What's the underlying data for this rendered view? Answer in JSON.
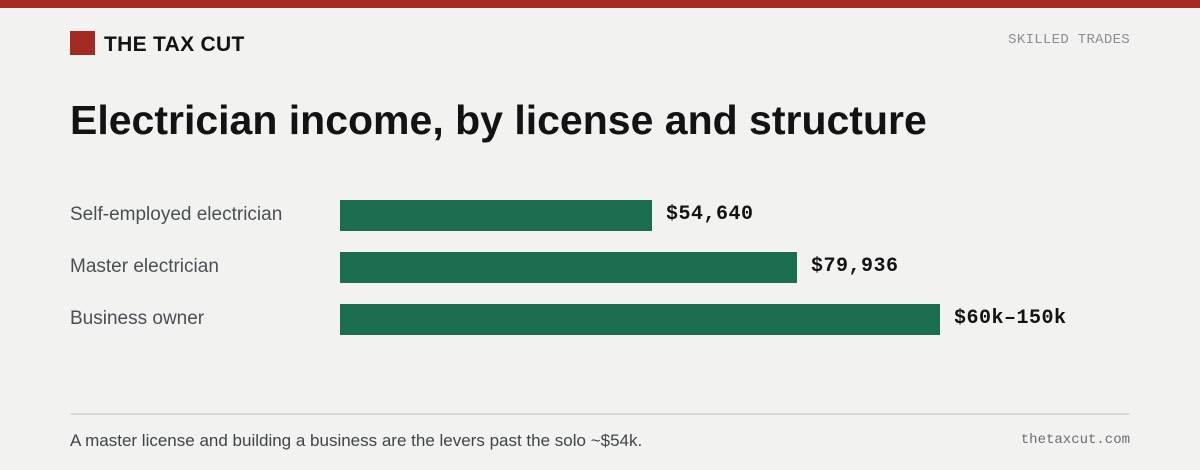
{
  "brand": {
    "name": "THE TAX CUT",
    "color": "#a52a22"
  },
  "section": "SKILLED TRADES",
  "chart_data": {
    "type": "bar",
    "orientation": "horizontal",
    "title": "Electrician income, by license and structure",
    "categories": [
      "Self-employed electrician",
      "Master electrician",
      "Business owner"
    ],
    "values": [
      54640,
      79936,
      105000
    ],
    "ranges": [
      null,
      null,
      [
        60000,
        150000
      ]
    ],
    "value_labels": [
      "$54,640",
      "$79,936",
      "$60k–150k"
    ],
    "bar_color": "#1c6e51",
    "xlim": [
      0,
      105000
    ],
    "grid": false,
    "legend": "none"
  },
  "footnote": "A master license and building a business are the levers past the solo ~$54k.",
  "site": "thetaxcut.com"
}
